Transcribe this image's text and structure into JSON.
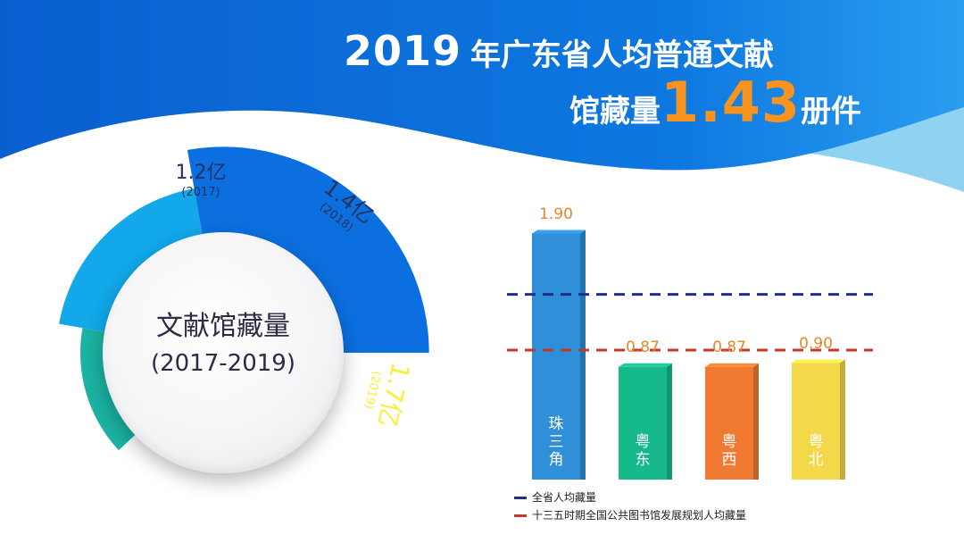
{
  "title": {
    "year": "2019",
    "line1_rest": "年广东省人均普通文献",
    "line2_prefix": "馆藏量",
    "highlight_value": "1.43",
    "line2_suffix": "册件"
  },
  "colors": {
    "wave_dark": "#0b6fd6",
    "wave_light": "#8fd2f2",
    "seg_2017": "#1bb3a3",
    "seg_2018": "#12a8ea",
    "seg_2019": "#0b6fe0",
    "highlight": "#f7931e",
    "line_province": "#1f2f8c",
    "line_plan": "#c23a2a"
  },
  "chart_data": [
    {
      "type": "pie",
      "center_title": "文献馆藏量",
      "center_subtitle": "(2017-2019)",
      "slices": [
        {
          "value_label": "1.2亿",
          "year_label": "(2017)",
          "value": 1.2,
          "color": "#1bb3a3"
        },
        {
          "value_label": "1.4亿",
          "year_label": "(2018)",
          "value": 1.4,
          "color": "#12a8ea"
        },
        {
          "value_label": "1.7亿",
          "year_label": "(2019)",
          "value": 1.7,
          "color": "#0b6fe0"
        }
      ]
    },
    {
      "type": "bar",
      "categories": [
        "珠三角",
        "粤东",
        "粤西",
        "粤北"
      ],
      "values": [
        1.9,
        0.87,
        0.87,
        0.9
      ],
      "value_labels": [
        "1.90",
        "0.87",
        "0.87",
        "0.90"
      ],
      "bar_colors": [
        "#2f8fd8",
        "#16b98a",
        "#f07a32",
        "#f3d84a"
      ],
      "ylim": [
        0,
        2.25
      ],
      "reference_lines": [
        {
          "name": "全省人均藏量",
          "value": 1.43,
          "color": "#1f2f8c",
          "style": "dashed"
        },
        {
          "name": "十三五时期全国公共图书馆发展规划人均藏量",
          "value": 1.0,
          "color": "#c23a2a",
          "style": "dashed"
        }
      ],
      "legend_position": "bottom"
    }
  ]
}
